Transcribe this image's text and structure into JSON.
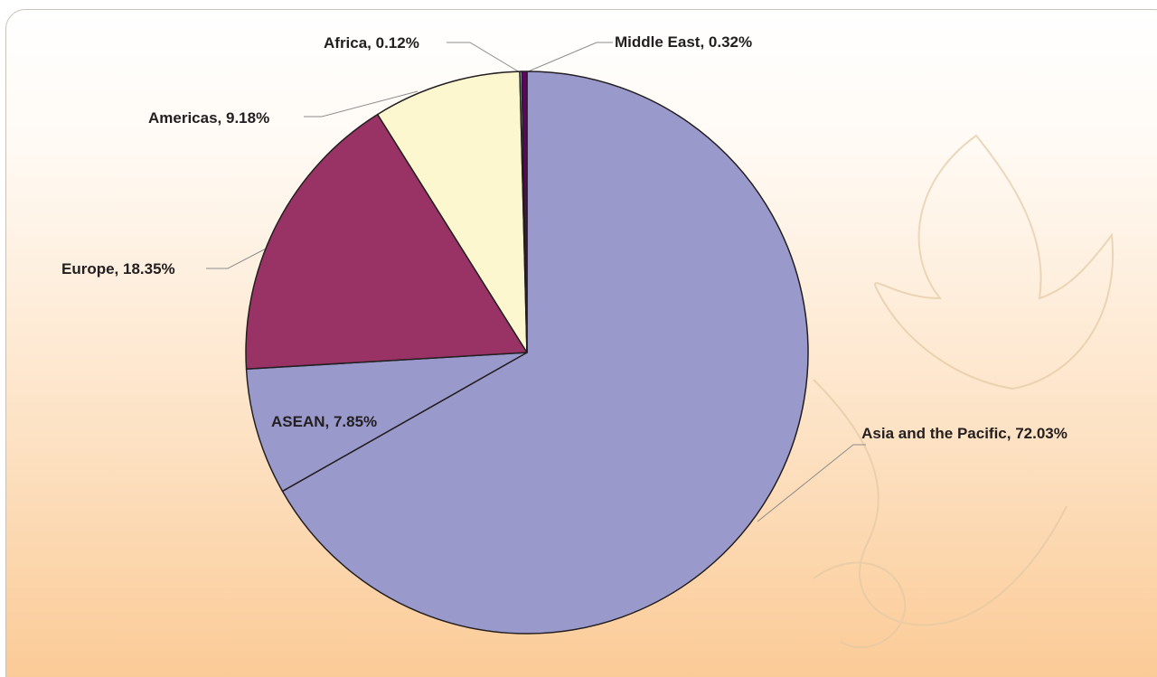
{
  "chart_data": {
    "type": "pie",
    "categories": [
      "Asia and the Pacific, 72.03%",
      "ASEAN, 7.85%",
      "Europe, 18.35%",
      "Americas, 9.18%",
      "Africa, 0.12%",
      "Middle East, 0.32%"
    ],
    "values": [
      72.03,
      7.85,
      18.35,
      9.18,
      0.12,
      0.32
    ],
    "colors": [
      "#9999cc",
      "#9999cc",
      "#993366",
      "#fcf7cf",
      "#ccffff",
      "#660066"
    ]
  }
}
